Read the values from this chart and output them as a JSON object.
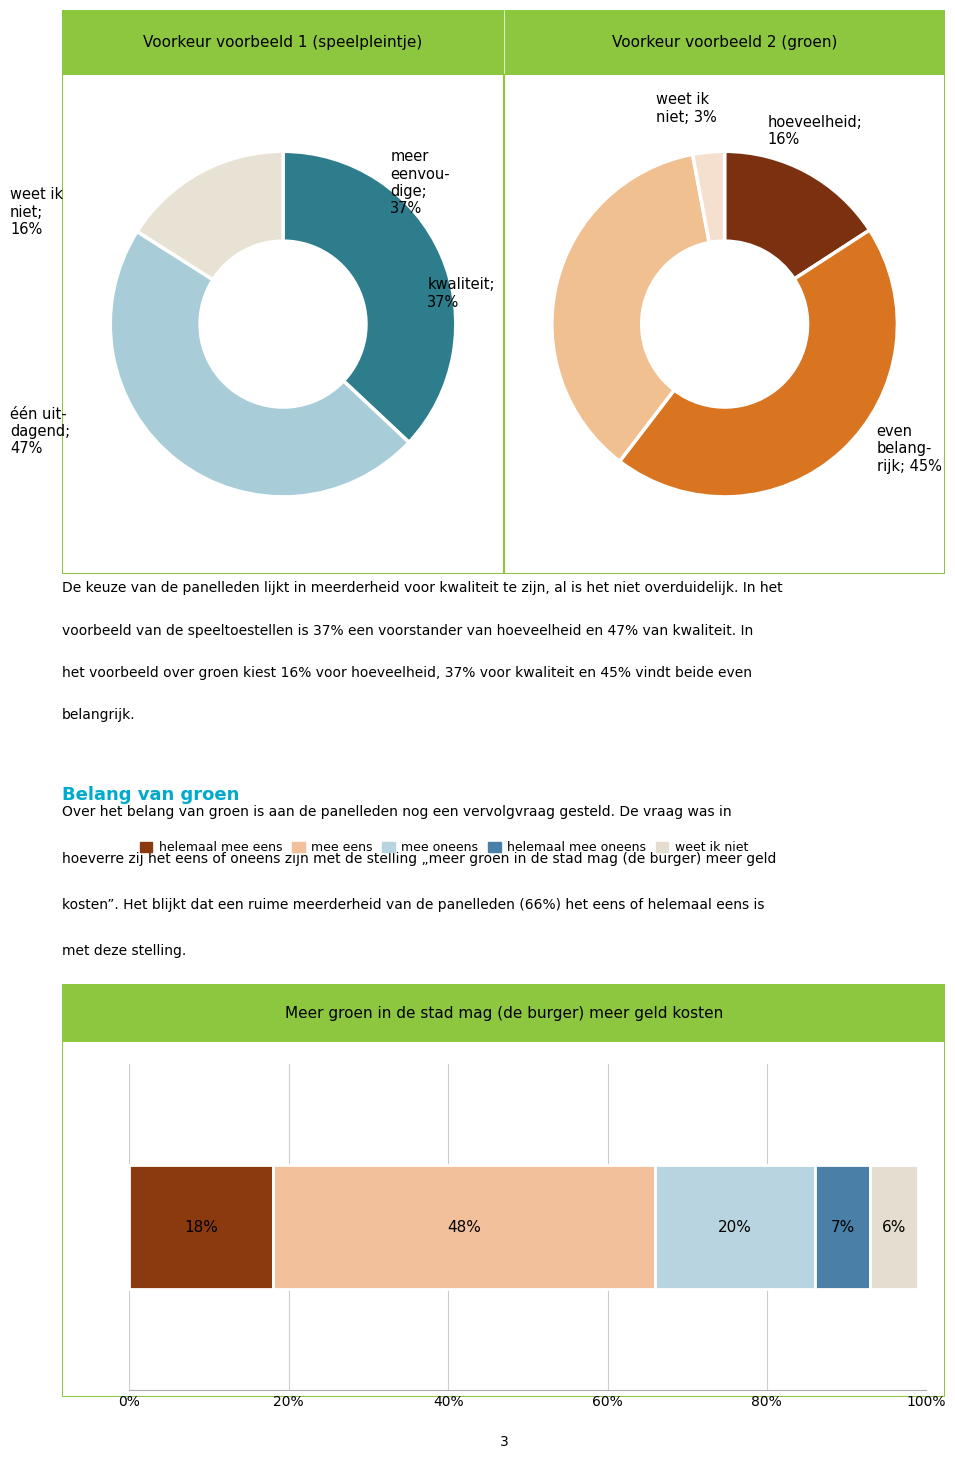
{
  "pie1_title": "Voorkeur voorbeeld 1 (speelpleintje)",
  "pie1_values": [
    37,
    47,
    16
  ],
  "pie1_colors": [
    "#2e7d8c",
    "#a8cdd8",
    "#e8e2d5"
  ],
  "pie1_startangle": 90,
  "pie2_title": "Voorkeur voorbeeld 2 (groen)",
  "pie2_values": [
    16,
    45,
    37,
    3
  ],
  "pie2_colors": [
    "#7b3010",
    "#d97420",
    "#f0c090",
    "#f5e0d0"
  ],
  "pie2_startangle": 90,
  "body_text_lines": [
    "De keuze van de panelleden lijkt in meerderheid voor kwaliteit te zijn, al is het niet overduidelijk. In het",
    "voorbeeld van de speeltoestellen is 37% een voorstander van hoeveelheid en 47% van kwaliteit. In",
    "het voorbeeld over groen kiest 16% voor hoeveelheid, 37% voor kwaliteit en 45% vindt beide even",
    "belangrijk."
  ],
  "section_title": "Belang van groen",
  "section_text_lines": [
    "Over het belang van groen is aan de panelleden nog een vervolgvraag gesteld. De vraag was in",
    "hoeverre zij het eens of oneens zijn met de stelling „meer groen in de stad mag (de burger) meer geld",
    "kosten”. Het blijkt dat een ruime meerderheid van de panelleden (66%) het eens of helemaal eens is",
    "met deze stelling."
  ],
  "bar_title": "Meer groen in de stad mag (de burger) meer geld kosten",
  "bar_values": [
    18,
    48,
    20,
    7,
    6
  ],
  "bar_labels": [
    "18%",
    "48%",
    "20%",
    "7%",
    "6%"
  ],
  "bar_colors": [
    "#8b3a0f",
    "#f2c09a",
    "#b8d4e0",
    "#4a7fa8",
    "#e5ddd0"
  ],
  "bar_legend_labels": [
    "helemaal mee eens",
    "mee eens",
    "mee oneens",
    "helemaal mee oneens",
    "weet ik niet"
  ],
  "header_bg": "#8dc63f",
  "border_color": "#8dc63f",
  "section_title_color": "#00aacc",
  "page_number": "3",
  "pie1_label_meer": "meer\neenvou-\ndige;\n37%",
  "pie1_label_een": "één uit-\ndagend;\n47%",
  "pie1_label_weet": "weet ik\nniet;\n16%",
  "pie2_label_hoe": "hoeveelheid;\n16%",
  "pie2_label_even": "even\nbelang-\nrijk; 45%",
  "pie2_label_kwal": "kwaliteit;\n37%",
  "pie2_label_weet": "weet ik\nniet; 3%"
}
